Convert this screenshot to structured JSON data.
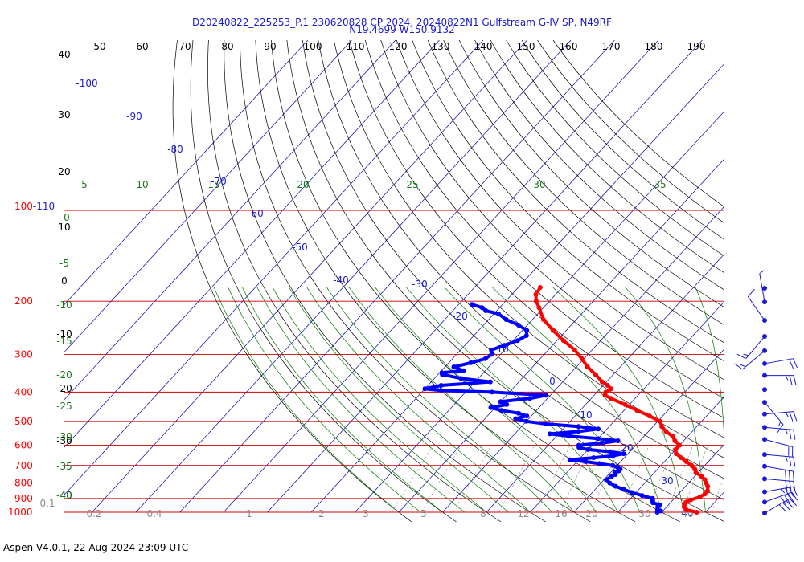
{
  "title_line1": "D20240822_225253_P.1 230620828 CP 2024, 20240822N1 Gulfstream G-IV SP, N49RF",
  "title_line2": "N19.4699 W150.9132",
  "footer": "Aspen V4.0.1, 22 Aug 2024  23:09 UTC",
  "colors": {
    "temperature": "#ff0000",
    "dewpoint": "#0000ff",
    "isobar": "#cc0000",
    "isotherm": "#0000aa",
    "dry_adiabat": "#000000",
    "moist_adiabat": "#007a00",
    "mixing_ratio": "#9a9a9a"
  },
  "chart_data": {
    "type": "skew-t log-p",
    "pressure_axis_labels": [
      "100-110",
      "200",
      "300",
      "400",
      "500",
      "600",
      "700",
      "800",
      "900",
      "1000"
    ],
    "pressure_levels_hpa": [
      100,
      200,
      300,
      400,
      500,
      600,
      700,
      800,
      900,
      1000
    ],
    "top_scale_labels": [
      "50",
      "60",
      "70",
      "80",
      "90",
      "100",
      "110",
      "120",
      "130",
      "140",
      "150",
      "160",
      "170",
      "180",
      "190"
    ],
    "left_scale_labels": [
      "40",
      "30",
      "20",
      "10",
      "0",
      "-10",
      "-20",
      "-30",
      "-40"
    ],
    "isotherm_labels": [
      "-100",
      "-90",
      "-80",
      "-70",
      "-60",
      "-50",
      "-40",
      "-30",
      "-20",
      "-10",
      "0",
      "10",
      "20",
      "30",
      "40"
    ],
    "moist_adiabat_labels": [
      "5",
      "10",
      "15",
      "20",
      "25",
      "30",
      "35"
    ],
    "moist_adiabat_left_labels": [
      "0",
      "-5",
      "-10",
      "-15",
      "-20",
      "-25",
      "-30",
      "-35",
      "-40"
    ],
    "mixing_ratio_labels": [
      "0.1",
      "0.2",
      "0.4",
      "1",
      "2",
      "3",
      "5",
      "8",
      "12",
      "16",
      "20",
      "30",
      "40"
    ],
    "series": [
      {
        "key": "temperature",
        "points": [
          [
            1000,
            28.0
          ],
          [
            980,
            25.0
          ],
          [
            960,
            24.0
          ],
          [
            940,
            23.5
          ],
          [
            925,
            23.5
          ],
          [
            910,
            24.0
          ],
          [
            890,
            25.5
          ],
          [
            870,
            26.0
          ],
          [
            850,
            26.0
          ],
          [
            820,
            25.0
          ],
          [
            800,
            24.0
          ],
          [
            780,
            23.0
          ],
          [
            760,
            21.5
          ],
          [
            740,
            19.5
          ],
          [
            720,
            18.5
          ],
          [
            700,
            17.0
          ],
          [
            680,
            15.0
          ],
          [
            660,
            13.0
          ],
          [
            640,
            11.0
          ],
          [
            620,
            10.0
          ],
          [
            600,
            10.0
          ],
          [
            580,
            8.0
          ],
          [
            560,
            6.5
          ],
          [
            540,
            4.0
          ],
          [
            520,
            2.0
          ],
          [
            500,
            0.5
          ],
          [
            480,
            -3.0
          ],
          [
            460,
            -7.0
          ],
          [
            440,
            -11.0
          ],
          [
            420,
            -15.5
          ],
          [
            410,
            -17.5
          ],
          [
            400,
            -18.0
          ],
          [
            390,
            -17.5
          ],
          [
            380,
            -19.0
          ],
          [
            370,
            -21.0
          ],
          [
            350,
            -24.0
          ],
          [
            330,
            -27.5
          ],
          [
            310,
            -30.5
          ],
          [
            290,
            -34.0
          ],
          [
            270,
            -38.5
          ],
          [
            250,
            -43.0
          ],
          [
            230,
            -47.5
          ],
          [
            210,
            -51.0
          ],
          [
            200,
            -53.0
          ],
          [
            190,
            -54.5
          ],
          [
            180,
            -55.0
          ]
        ]
      },
      {
        "key": "dewpoint",
        "points": [
          [
            1000,
            19.0
          ],
          [
            990,
            19.5
          ],
          [
            980,
            18.5
          ],
          [
            960,
            18.0
          ],
          [
            945,
            18.0
          ],
          [
            930,
            16.0
          ],
          [
            915,
            15.5
          ],
          [
            900,
            15.0
          ],
          [
            880,
            12.0
          ],
          [
            860,
            9.0
          ],
          [
            840,
            6.5
          ],
          [
            820,
            4.0
          ],
          [
            800,
            2.0
          ],
          [
            780,
            0.5
          ],
          [
            760,
            1.0
          ],
          [
            750,
            1.5
          ],
          [
            740,
            1.0
          ],
          [
            730,
            1.5
          ],
          [
            720,
            1.5
          ],
          [
            710,
            0.5
          ],
          [
            700,
            -1.0
          ],
          [
            690,
            -4.5
          ],
          [
            680,
            -8.0
          ],
          [
            670,
            -12.0
          ],
          [
            660,
            -7.0
          ],
          [
            650,
            -3.0
          ],
          [
            640,
            -1.0
          ],
          [
            630,
            -4.5
          ],
          [
            620,
            -10.0
          ],
          [
            610,
            -12.5
          ],
          [
            600,
            -13.0
          ],
          [
            590,
            -8.0
          ],
          [
            580,
            -5.0
          ],
          [
            570,
            -10.0
          ],
          [
            560,
            -17.0
          ],
          [
            550,
            -22.0
          ],
          [
            540,
            -16.0
          ],
          [
            530,
            -12.0
          ],
          [
            520,
            -17.0
          ],
          [
            510,
            -25.0
          ],
          [
            500,
            -30.0
          ],
          [
            490,
            -33.0
          ],
          [
            480,
            -31.0
          ],
          [
            470,
            -33.5
          ],
          [
            460,
            -38.0
          ],
          [
            450,
            -41.0
          ],
          [
            440,
            -38.0
          ],
          [
            430,
            -40.0
          ],
          [
            420,
            -34.0
          ],
          [
            410,
            -31.0
          ],
          [
            400,
            -44.0
          ],
          [
            395,
            -56.0
          ],
          [
            390,
            -60.0
          ],
          [
            380,
            -57.0
          ],
          [
            370,
            -46.5
          ],
          [
            360,
            -54.0
          ],
          [
            350,
            -59.0
          ],
          [
            345,
            -59.5
          ],
          [
            340,
            -55.0
          ],
          [
            330,
            -58.0
          ],
          [
            320,
            -55.0
          ],
          [
            310,
            -52.5
          ],
          [
            300,
            -52.0
          ],
          [
            290,
            -53.0
          ],
          [
            280,
            -51.0
          ],
          [
            270,
            -49.0
          ],
          [
            260,
            -48.0
          ],
          [
            250,
            -49.0
          ],
          [
            240,
            -52.0
          ],
          [
            230,
            -56.0
          ],
          [
            220,
            -59.0
          ],
          [
            215,
            -62.5
          ],
          [
            210,
            -64.0
          ],
          [
            205,
            -67.0
          ]
        ]
      }
    ],
    "wind_barbs": [
      {
        "p": 180,
        "speed": 0,
        "dir": 0
      },
      {
        "p": 200,
        "speed": 5,
        "dir": 350
      },
      {
        "p": 230,
        "speed": 10,
        "dir": 325
      },
      {
        "p": 260,
        "speed": 15,
        "dir": 220
      },
      {
        "p": 290,
        "speed": 15,
        "dir": 230
      },
      {
        "p": 320,
        "speed": 20,
        "dir": 80
      },
      {
        "p": 350,
        "speed": 25,
        "dir": 90
      },
      {
        "p": 390,
        "speed": 0,
        "dir": 0
      },
      {
        "p": 430,
        "speed": 15,
        "dir": 140
      },
      {
        "p": 470,
        "speed": 25,
        "dir": 85
      },
      {
        "p": 520,
        "speed": 25,
        "dir": 95
      },
      {
        "p": 570,
        "speed": 20,
        "dir": 105
      },
      {
        "p": 640,
        "speed": 25,
        "dir": 95
      },
      {
        "p": 700,
        "speed": 30,
        "dir": 100
      },
      {
        "p": 770,
        "speed": 30,
        "dir": 95
      },
      {
        "p": 850,
        "speed": 35,
        "dir": 80
      },
      {
        "p": 920,
        "speed": 40,
        "dir": 70
      },
      {
        "p": 1000,
        "speed": 40,
        "dir": 60
      }
    ]
  }
}
